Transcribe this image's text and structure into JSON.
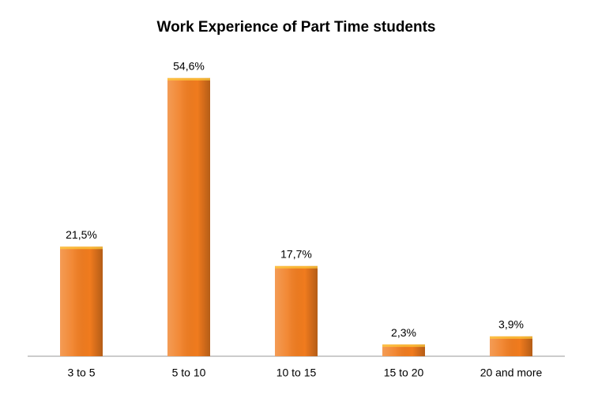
{
  "chart_data": {
    "type": "bar",
    "title": "Work Experience of Part Time students",
    "categories": [
      "3 to 5",
      "5 to 10",
      "10 to 15",
      "15 to 20",
      "20 and more"
    ],
    "values": [
      21.5,
      54.6,
      17.7,
      2.3,
      3.9
    ],
    "value_labels": [
      "21,5%",
      "54,6%",
      "17,7%",
      "2,3%",
      "3,9%"
    ],
    "color": "#f07b1e"
  }
}
